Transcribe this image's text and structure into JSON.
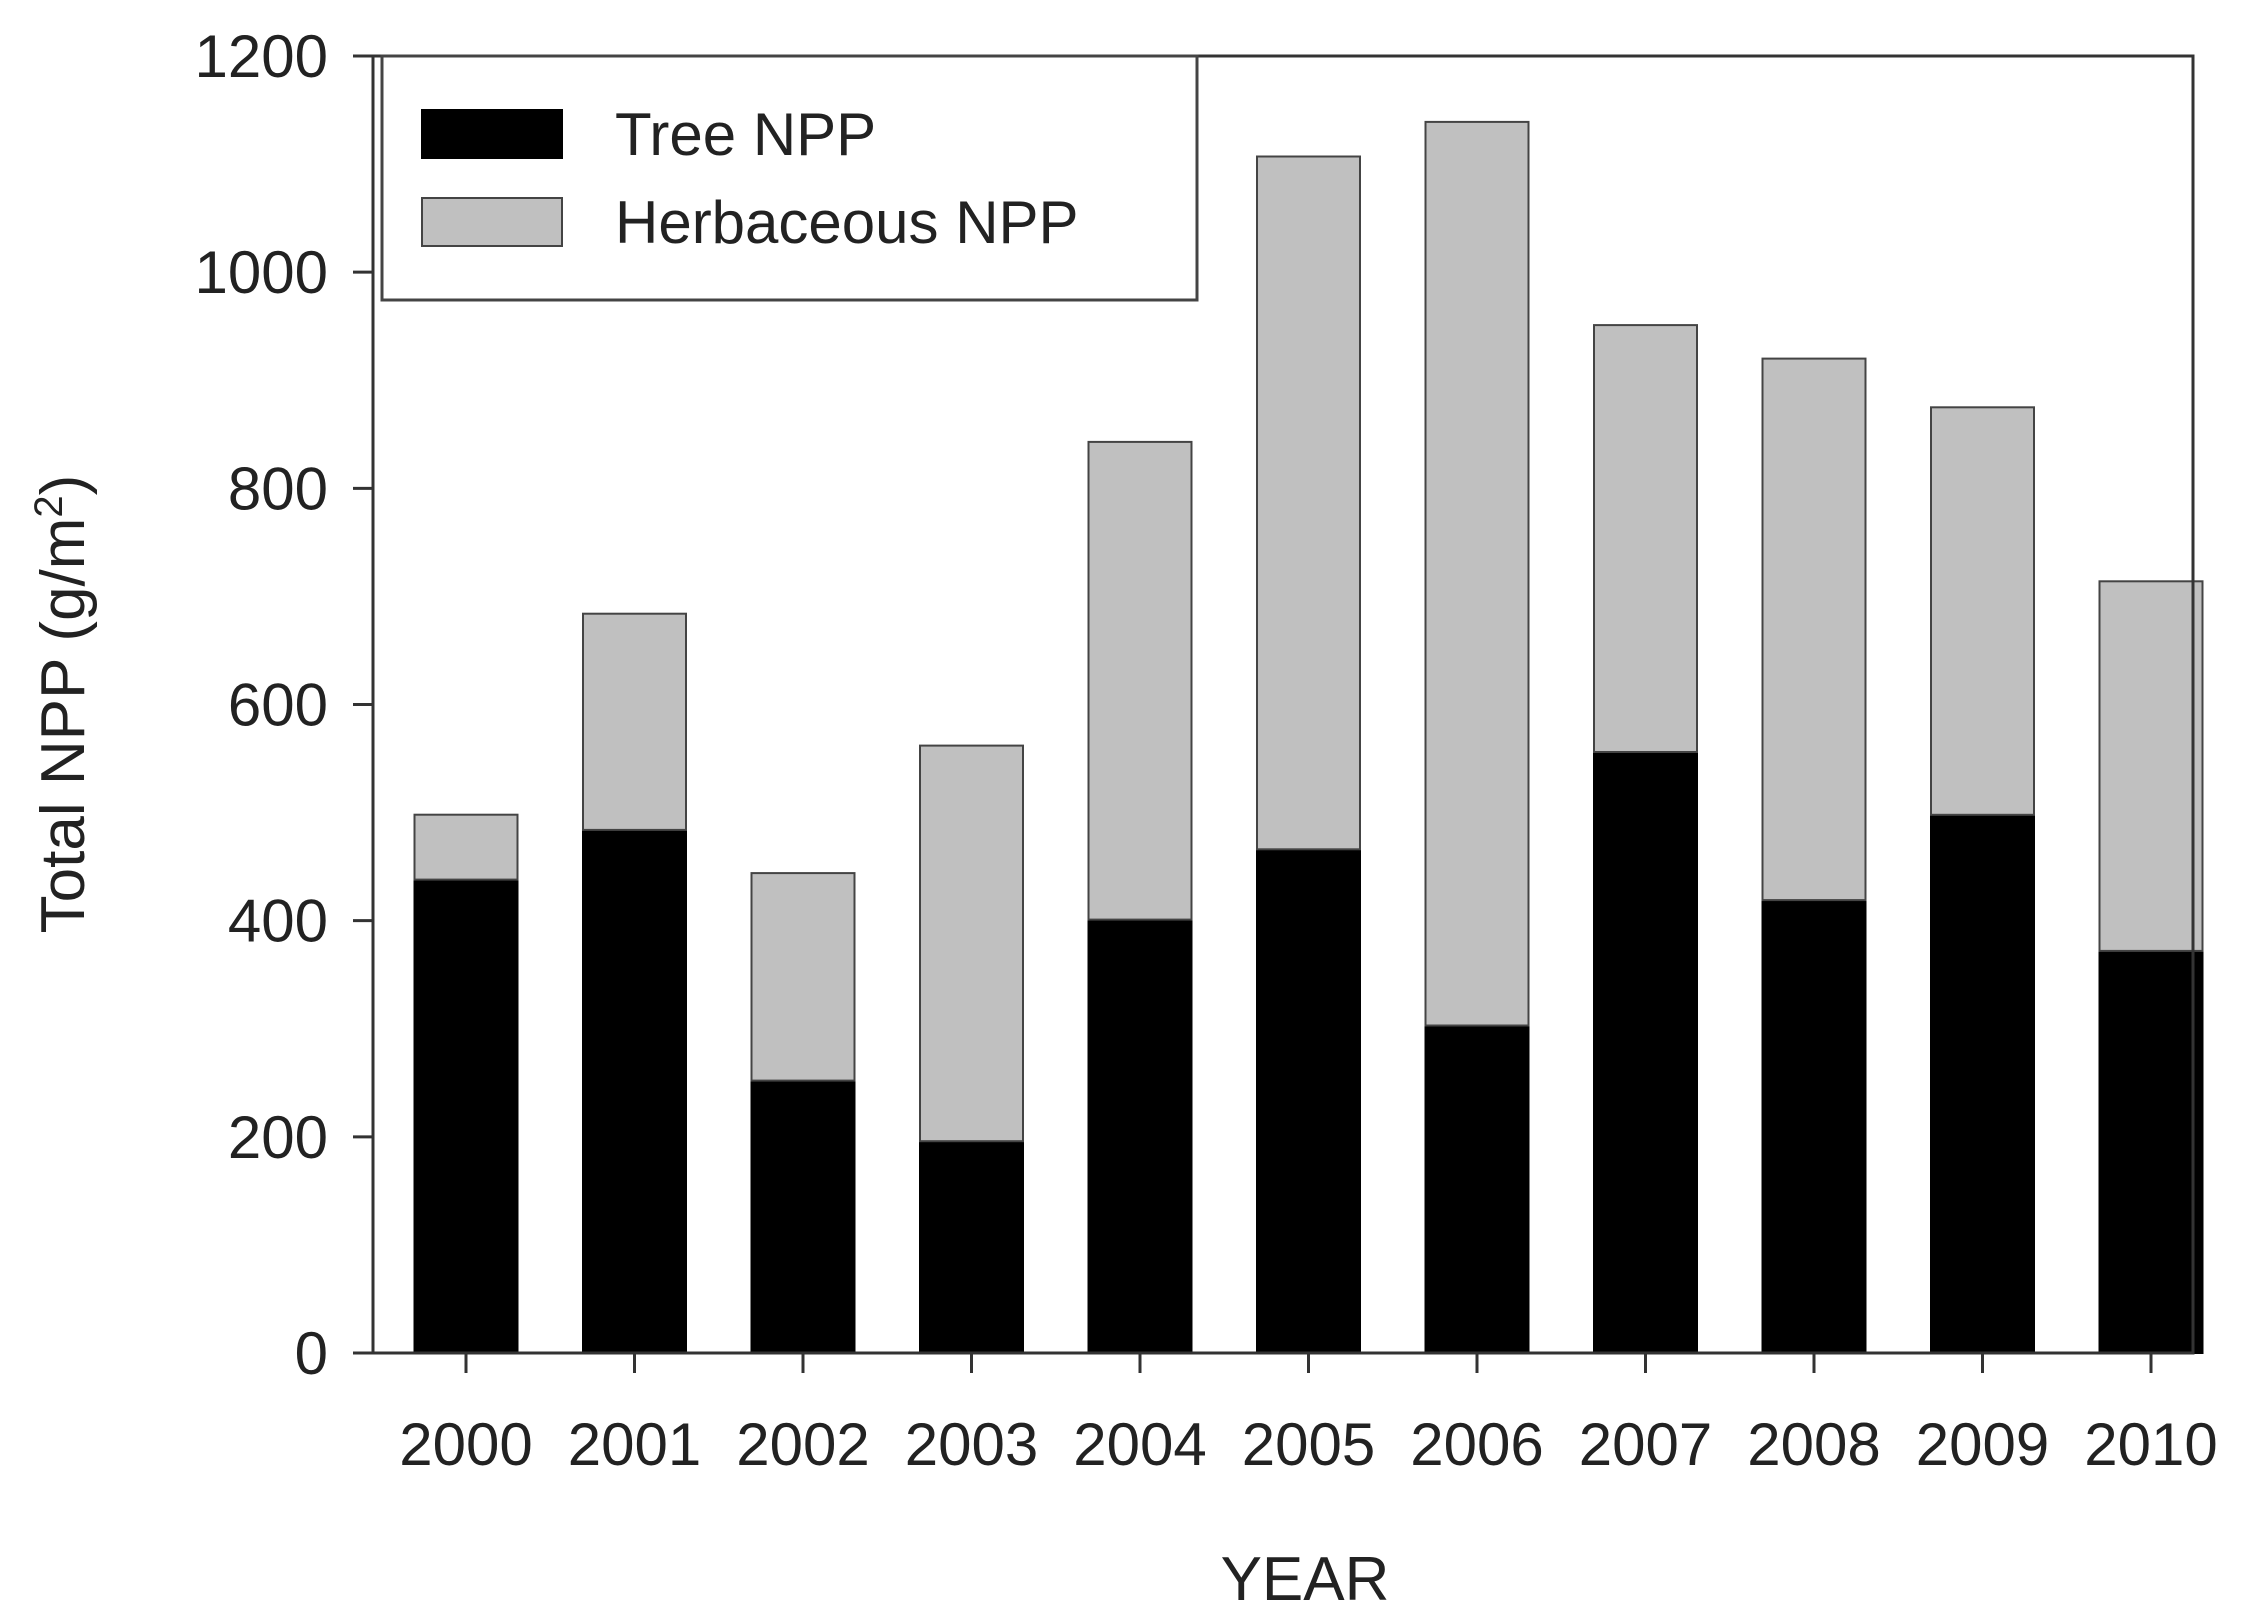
{
  "chart_data": {
    "type": "bar",
    "stacked": true,
    "categories": [
      "2000",
      "2001",
      "2002",
      "2003",
      "2004",
      "2005",
      "2006",
      "2007",
      "2008",
      "2009",
      "2010"
    ],
    "series": [
      {
        "name": "Tree NPP",
        "color": "#000000",
        "values": [
          438,
          484,
          252,
          196,
          401,
          466,
          303,
          556,
          419,
          498,
          372
        ]
      },
      {
        "name": "Herbaceous NPP",
        "color": "#c0c0c0",
        "values": [
          60,
          200,
          192,
          366,
          442,
          641,
          836,
          395,
          501,
          377,
          342
        ]
      }
    ],
    "xlabel": "YEAR",
    "ylabel": "Total NPP (g/m",
    "ylabel_superscript": "2",
    "ylabel_suffix": ")",
    "ylim": [
      0,
      1200
    ],
    "yticks": [
      "0",
      "200",
      "400",
      "600",
      "800",
      "1000",
      "1200"
    ],
    "grid": false,
    "legend_position": "top-left"
  }
}
